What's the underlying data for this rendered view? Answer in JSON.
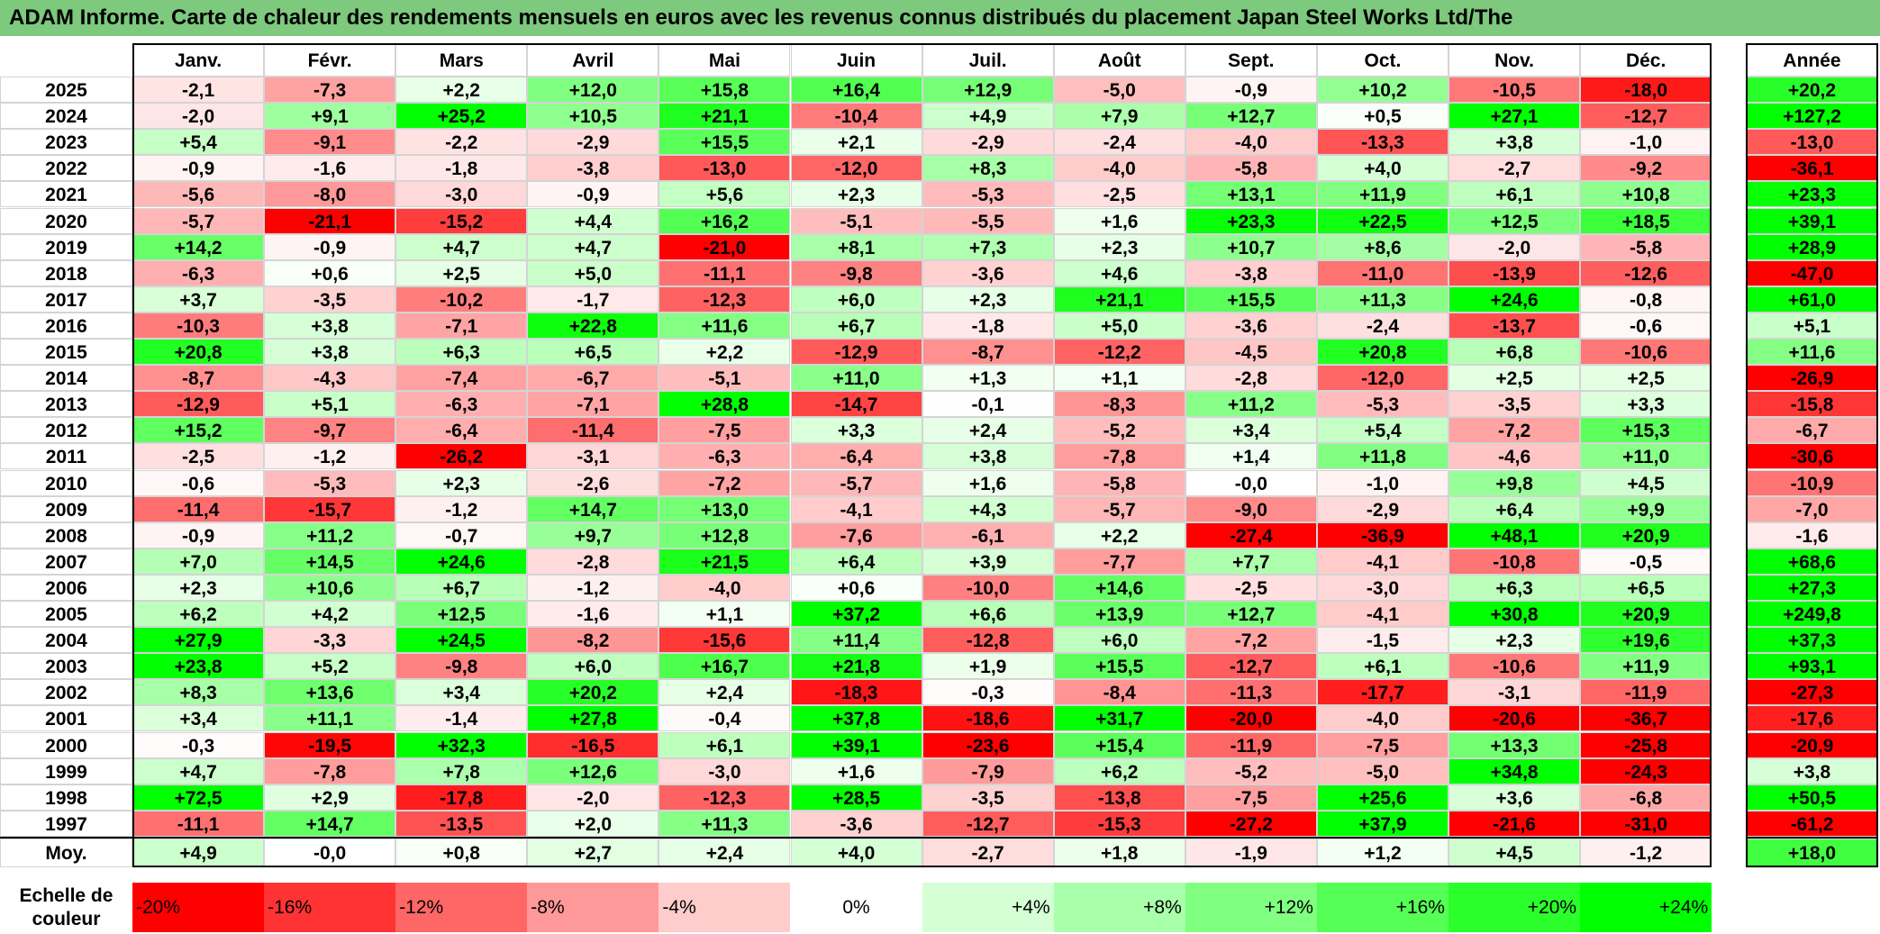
{
  "title": "ADAM Informe. Carte de chaleur des rendements mensuels en euros avec les revenus connus distribués du placement Japan Steel Works Ltd/The",
  "chart_data": {
    "type": "heatmap",
    "title": "ADAM Informe. Carte de chaleur des rendements mensuels en euros avec les revenus connus distribués du placement Japan Steel Works Ltd/The",
    "months": [
      "Janv.",
      "Févr.",
      "Mars",
      "Avril",
      "Mai",
      "Juin",
      "Juil.",
      "Août",
      "Sept.",
      "Oct.",
      "Nov.",
      "Déc."
    ],
    "year_header": "Année",
    "rows": [
      {
        "year": "2025",
        "values": [
          "-2,1",
          "-7,3",
          "+2,2",
          "+12,0",
          "+15,8",
          "+16,4",
          "+12,9",
          "-5,0",
          "-0,9",
          "+10,2",
          "-10,5",
          "-18,0"
        ],
        "annual": "+20,2"
      },
      {
        "year": "2024",
        "values": [
          "-2,0",
          "+9,1",
          "+25,2",
          "+10,5",
          "+21,1",
          "-10,4",
          "+4,9",
          "+7,9",
          "+12,7",
          "+0,5",
          "+27,1",
          "-12,7"
        ],
        "annual": "+127,2"
      },
      {
        "year": "2023",
        "values": [
          "+5,4",
          "-9,1",
          "-2,2",
          "-2,9",
          "+15,5",
          "+2,1",
          "-2,9",
          "-2,4",
          "-4,0",
          "-13,3",
          "+3,8",
          "-1,0"
        ],
        "annual": "-13,0"
      },
      {
        "year": "2022",
        "values": [
          "-0,9",
          "-1,6",
          "-1,8",
          "-3,8",
          "-13,0",
          "-12,0",
          "+8,3",
          "-4,0",
          "-5,8",
          "+4,0",
          "-2,7",
          "-9,2"
        ],
        "annual": "-36,1"
      },
      {
        "year": "2021",
        "values": [
          "-5,6",
          "-8,0",
          "-3,0",
          "-0,9",
          "+5,6",
          "+2,3",
          "-5,3",
          "-2,5",
          "+13,1",
          "+11,9",
          "+6,1",
          "+10,8"
        ],
        "annual": "+23,3"
      },
      {
        "year": "2020",
        "values": [
          "-5,7",
          "-21,1",
          "-15,2",
          "+4,4",
          "+16,2",
          "-5,1",
          "-5,5",
          "+1,6",
          "+23,3",
          "+22,5",
          "+12,5",
          "+18,5"
        ],
        "annual": "+39,1"
      },
      {
        "year": "2019",
        "values": [
          "+14,2",
          "-0,9",
          "+4,7",
          "+4,7",
          "-21,0",
          "+8,1",
          "+7,3",
          "+2,3",
          "+10,7",
          "+8,6",
          "-2,0",
          "-5,8"
        ],
        "annual": "+28,9"
      },
      {
        "year": "2018",
        "values": [
          "-6,3",
          "+0,6",
          "+2,5",
          "+5,0",
          "-11,1",
          "-9,8",
          "-3,6",
          "+4,6",
          "-3,8",
          "-11,0",
          "-13,9",
          "-12,6"
        ],
        "annual": "-47,0"
      },
      {
        "year": "2017",
        "values": [
          "+3,7",
          "-3,5",
          "-10,2",
          "-1,7",
          "-12,3",
          "+6,0",
          "+2,3",
          "+21,1",
          "+15,5",
          "+11,3",
          "+24,6",
          "-0,8"
        ],
        "annual": "+61,0"
      },
      {
        "year": "2016",
        "values": [
          "-10,3",
          "+3,8",
          "-7,1",
          "+22,8",
          "+11,6",
          "+6,7",
          "-1,8",
          "+5,0",
          "-3,6",
          "-2,4",
          "-13,7",
          "-0,6"
        ],
        "annual": "+5,1"
      },
      {
        "year": "2015",
        "values": [
          "+20,8",
          "+3,8",
          "+6,3",
          "+6,5",
          "+2,2",
          "-12,9",
          "-8,7",
          "-12,2",
          "-4,5",
          "+20,8",
          "+6,8",
          "-10,6"
        ],
        "annual": "+11,6"
      },
      {
        "year": "2014",
        "values": [
          "-8,7",
          "-4,3",
          "-7,4",
          "-6,7",
          "-5,1",
          "+11,0",
          "+1,3",
          "+1,1",
          "-2,8",
          "-12,0",
          "+2,5",
          "+2,5"
        ],
        "annual": "-26,9"
      },
      {
        "year": "2013",
        "values": [
          "-12,9",
          "+5,1",
          "-6,3",
          "-7,1",
          "+28,8",
          "-14,7",
          "-0,1",
          "-8,3",
          "+11,2",
          "-5,3",
          "-3,5",
          "+3,3"
        ],
        "annual": "-15,8"
      },
      {
        "year": "2012",
        "values": [
          "+15,2",
          "-9,7",
          "-6,4",
          "-11,4",
          "-7,5",
          "+3,3",
          "+2,4",
          "-5,2",
          "+3,4",
          "+5,4",
          "-7,2",
          "+15,3"
        ],
        "annual": "-6,7"
      },
      {
        "year": "2011",
        "values": [
          "-2,5",
          "-1,2",
          "-26,2",
          "-3,1",
          "-6,3",
          "-6,4",
          "+3,8",
          "-7,8",
          "+1,4",
          "+11,8",
          "-4,6",
          "+11,0"
        ],
        "annual": "-30,6"
      },
      {
        "year": "2010",
        "values": [
          "-0,6",
          "-5,3",
          "+2,3",
          "-2,6",
          "-7,2",
          "-5,7",
          "+1,6",
          "-5,8",
          "-0,0",
          "-1,0",
          "+9,8",
          "+4,5"
        ],
        "annual": "-10,9"
      },
      {
        "year": "2009",
        "values": [
          "-11,4",
          "-15,7",
          "-1,2",
          "+14,7",
          "+13,0",
          "-4,1",
          "+4,3",
          "-5,7",
          "-9,0",
          "-2,9",
          "+6,4",
          "+9,9"
        ],
        "annual": "-7,0"
      },
      {
        "year": "2008",
        "values": [
          "-0,9",
          "+11,2",
          "-0,7",
          "+9,7",
          "+12,8",
          "-7,6",
          "-6,1",
          "+2,2",
          "-27,4",
          "-36,9",
          "+48,1",
          "+20,9"
        ],
        "annual": "-1,6"
      },
      {
        "year": "2007",
        "values": [
          "+7,0",
          "+14,5",
          "+24,6",
          "-2,8",
          "+21,5",
          "+6,4",
          "+3,9",
          "-7,7",
          "+7,7",
          "-4,1",
          "-10,8",
          "-0,5"
        ],
        "annual": "+68,6"
      },
      {
        "year": "2006",
        "values": [
          "+2,3",
          "+10,6",
          "+6,7",
          "-1,2",
          "-4,0",
          "+0,6",
          "-10,0",
          "+14,6",
          "-2,5",
          "-3,0",
          "+6,3",
          "+6,5"
        ],
        "annual": "+27,3"
      },
      {
        "year": "2005",
        "values": [
          "+6,2",
          "+4,2",
          "+12,5",
          "-1,6",
          "+1,1",
          "+37,2",
          "+6,6",
          "+13,9",
          "+12,7",
          "-4,1",
          "+30,8",
          "+20,9"
        ],
        "annual": "+249,8"
      },
      {
        "year": "2004",
        "values": [
          "+27,9",
          "-3,3",
          "+24,5",
          "-8,2",
          "-15,6",
          "+11,4",
          "-12,8",
          "+6,0",
          "-7,2",
          "-1,5",
          "+2,3",
          "+19,6"
        ],
        "annual": "+37,3"
      },
      {
        "year": "2003",
        "values": [
          "+23,8",
          "+5,2",
          "-9,8",
          "+6,0",
          "+16,7",
          "+21,8",
          "+1,9",
          "+15,5",
          "-12,7",
          "+6,1",
          "-10,6",
          "+11,9"
        ],
        "annual": "+93,1"
      },
      {
        "year": "2002",
        "values": [
          "+8,3",
          "+13,6",
          "+3,4",
          "+20,2",
          "+2,4",
          "-18,3",
          "-0,3",
          "-8,4",
          "-11,3",
          "-17,7",
          "-3,1",
          "-11,9"
        ],
        "annual": "-27,3"
      },
      {
        "year": "2001",
        "values": [
          "+3,4",
          "+11,1",
          "-1,4",
          "+27,8",
          "-0,4",
          "+37,8",
          "-18,6",
          "+31,7",
          "-20,0",
          "-4,0",
          "-20,6",
          "-36,7"
        ],
        "annual": "-17,6"
      },
      {
        "year": "2000",
        "values": [
          "-0,3",
          "-19,5",
          "+32,3",
          "-16,5",
          "+6,1",
          "+39,1",
          "-23,6",
          "+15,4",
          "-11,9",
          "-7,5",
          "+13,3",
          "-25,8"
        ],
        "annual": "-20,9"
      },
      {
        "year": "1999",
        "values": [
          "+4,7",
          "-7,8",
          "+7,8",
          "+12,6",
          "-3,0",
          "+1,6",
          "-7,9",
          "+6,2",
          "-5,2",
          "-5,0",
          "+34,8",
          "-24,3"
        ],
        "annual": "+3,8"
      },
      {
        "year": "1998",
        "values": [
          "+72,5",
          "+2,9",
          "-17,8",
          "-2,0",
          "-12,3",
          "+28,5",
          "-3,5",
          "-13,8",
          "-7,5",
          "+25,6",
          "+3,6",
          "-6,8"
        ],
        "annual": "+50,5"
      },
      {
        "year": "1997",
        "values": [
          "-11,1",
          "+14,7",
          "-13,5",
          "+2,0",
          "+11,3",
          "-3,6",
          "-12,7",
          "-15,3",
          "-27,2",
          "+37,9",
          "-21,6",
          "-31,0"
        ],
        "annual": "-61,2"
      }
    ],
    "average": {
      "label": "Moy.",
      "values": [
        "+4,9",
        "-0,0",
        "+0,8",
        "+2,7",
        "+2,4",
        "+4,0",
        "-2,7",
        "+1,8",
        "-1,9",
        "+1,2",
        "+4,5",
        "-1,2"
      ],
      "annual": "+18,0"
    },
    "legend": {
      "label_line1": "Echelle de",
      "label_line2": "couleur",
      "steps": [
        {
          "label": "-20%",
          "value": -20,
          "align": "left"
        },
        {
          "label": "-16%",
          "value": -16,
          "align": "left"
        },
        {
          "label": "-12%",
          "value": -12,
          "align": "left"
        },
        {
          "label": "-8%",
          "value": -8,
          "align": "left"
        },
        {
          "label": "-4%",
          "value": -4,
          "align": "left"
        },
        {
          "label": "0%",
          "value": 0,
          "align": "center"
        },
        {
          "label": "+4%",
          "value": 4,
          "align": "right"
        },
        {
          "label": "+8%",
          "value": 8,
          "align": "right"
        },
        {
          "label": "+12%",
          "value": 12,
          "align": "right"
        },
        {
          "label": "+16%",
          "value": 16,
          "align": "right"
        },
        {
          "label": "+20%",
          "value": 20,
          "align": "right"
        },
        {
          "label": "+24%",
          "value": 24,
          "align": "right"
        }
      ]
    },
    "color_scale": {
      "negative": "#ff0000",
      "zero": "#ffffff",
      "positive": "#00ff00",
      "min": -20,
      "max": 24
    },
    "header_band_color": "#7dc97d"
  }
}
